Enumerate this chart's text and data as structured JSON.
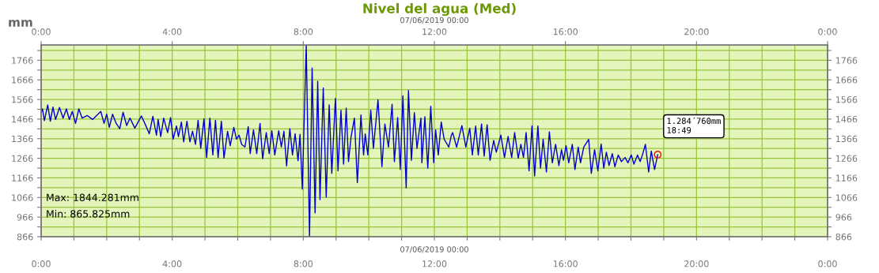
{
  "chart_data": {
    "type": "line",
    "title": "Nivel del agua (Med)",
    "ylabel": "mm",
    "xlabel": "07/06/2019 00:00",
    "x2label": "07/06/2019 00:00",
    "xlim": [
      0,
      24
    ],
    "xticks": [
      {
        "value": 0,
        "label": "0:00"
      },
      {
        "value": 1,
        "label": null
      },
      {
        "value": 2,
        "label": null
      },
      {
        "value": 3,
        "label": null
      },
      {
        "value": 4,
        "label": "4:00"
      },
      {
        "value": 5,
        "label": null
      },
      {
        "value": 6,
        "label": null
      },
      {
        "value": 7,
        "label": null
      },
      {
        "value": 8,
        "label": "8:00"
      },
      {
        "value": 9,
        "label": null
      },
      {
        "value": 10,
        "label": null
      },
      {
        "value": 11,
        "label": null
      },
      {
        "value": 12,
        "label": "12:00"
      },
      {
        "value": 13,
        "label": null
      },
      {
        "value": 14,
        "label": null
      },
      {
        "value": 15,
        "label": null
      },
      {
        "value": 16,
        "label": "16:00"
      },
      {
        "value": 17,
        "label": null
      },
      {
        "value": 18,
        "label": null
      },
      {
        "value": 19,
        "label": null
      },
      {
        "value": 20,
        "label": "20:00"
      },
      {
        "value": 21,
        "label": null
      },
      {
        "value": 22,
        "label": null
      },
      {
        "value": 23,
        "label": null
      },
      {
        "value": 24,
        "label": "0:00"
      }
    ],
    "x2lim": [
      0,
      24
    ],
    "x2ticks": [
      {
        "value": 0,
        "label": "0:00"
      },
      {
        "value": 4,
        "label": "4:00"
      },
      {
        "value": 8,
        "label": "8:00"
      },
      {
        "value": 12,
        "label": "12:00"
      },
      {
        "value": 16,
        "label": "16:00"
      },
      {
        "value": 20,
        "label": "20:00"
      },
      {
        "value": 24,
        "label": "0:00"
      }
    ],
    "ylim": [
      866,
      1844
    ],
    "yticks": [
      866,
      {
        "value": 916,
        "label": null
      },
      966,
      {
        "value": 1016,
        "label": null
      },
      1066,
      {
        "value": 1116,
        "label": null
      },
      1166,
      {
        "value": 1216,
        "label": null
      },
      1266,
      {
        "value": 1316,
        "label": null
      },
      1366,
      {
        "value": 1416,
        "label": null
      },
      1466,
      {
        "value": 1516,
        "label": null
      },
      1566,
      {
        "value": 1616,
        "label": null
      },
      1666,
      {
        "value": 1716,
        "label": null
      },
      1766,
      {
        "value": 1816,
        "label": null
      }
    ],
    "y2lim": [
      866,
      1844
    ],
    "y2ticks": [
      866,
      {
        "value": 916,
        "label": null
      },
      966,
      {
        "value": 1016,
        "label": null
      },
      1066,
      {
        "value": 1116,
        "label": null
      },
      1166,
      {
        "value": 1216,
        "label": null
      },
      1266,
      {
        "value": 1316,
        "label": null
      },
      1366,
      {
        "value": 1416,
        "label": null
      },
      1466,
      {
        "value": 1516,
        "label": null
      },
      1566,
      {
        "value": 1616,
        "label": null
      },
      1666,
      {
        "value": 1716,
        "label": null
      },
      1766,
      {
        "value": 1816,
        "label": null
      }
    ],
    "grid": true,
    "marker": "none",
    "line_style": "solid",
    "series": [
      {
        "color": "#0000cc",
        "x": [
          0,
          0.04,
          0.1,
          0.2,
          0.28,
          0.36,
          0.44,
          0.56,
          0.67,
          0.77,
          0.86,
          0.95,
          1.05,
          1.15,
          1.25,
          1.41,
          1.57,
          1.82,
          1.92,
          2.0,
          2.08,
          2.18,
          2.29,
          2.4,
          2.5,
          2.61,
          2.71,
          2.86,
          3.06,
          3.18,
          3.3,
          3.41,
          3.52,
          3.57,
          3.65,
          3.74,
          3.86,
          3.95,
          4.03,
          4.13,
          4.19,
          4.28,
          4.35,
          4.45,
          4.54,
          4.62,
          4.71,
          4.79,
          4.87,
          4.97,
          5.05,
          5.15,
          5.24,
          5.32,
          5.4,
          5.5,
          5.58,
          5.69,
          5.77,
          5.88,
          5.96,
          6.04,
          6.12,
          6.22,
          6.32,
          6.38,
          6.48,
          6.58,
          6.68,
          6.76,
          6.87,
          6.96,
          7.04,
          7.13,
          7.25,
          7.33,
          7.41,
          7.49,
          7.59,
          7.67,
          7.75,
          7.84,
          7.9,
          7.97,
          8.09,
          8.19,
          8.27,
          8.36,
          8.44,
          8.51,
          8.61,
          8.7,
          8.79,
          8.87,
          8.98,
          9.06,
          9.15,
          9.23,
          9.31,
          9.38,
          9.46,
          9.56,
          9.65,
          9.76,
          9.84,
          9.89,
          9.97,
          10.06,
          10.14,
          10.28,
          10.4,
          10.49,
          10.6,
          10.71,
          10.78,
          10.88,
          10.96,
          11.04,
          11.14,
          11.21,
          11.3,
          11.39,
          11.47,
          11.59,
          11.62,
          11.71,
          11.8,
          11.89,
          11.98,
          12.04,
          12.12,
          12.21,
          12.3,
          12.44,
          12.52,
          12.56,
          12.68,
          12.84,
          12.96,
          13.08,
          13.16,
          13.26,
          13.34,
          13.44,
          13.52,
          13.61,
          13.7,
          13.81,
          13.89,
          14.03,
          14.14,
          14.25,
          14.36,
          14.45,
          14.56,
          14.64,
          14.72,
          14.8,
          14.89,
          14.98,
          15.06,
          15.16,
          15.24,
          15.32,
          15.42,
          15.51,
          15.6,
          15.7,
          15.8,
          15.88,
          15.94,
          16.02,
          16.1,
          16.21,
          16.29,
          16.39,
          16.46,
          16.56,
          16.71,
          16.79,
          16.89,
          16.99,
          17.09,
          17.17,
          17.25,
          17.33,
          17.43,
          17.51,
          17.61,
          17.71,
          17.82,
          17.91,
          18.01,
          18.09,
          18.2,
          18.28,
          18.35,
          18.44,
          18.54,
          18.62,
          18.72,
          18.8167
        ],
        "values": [
          1498,
          1518,
          1458,
          1538,
          1455,
          1527,
          1464,
          1525,
          1471,
          1518,
          1464,
          1505,
          1444,
          1518,
          1471,
          1484,
          1464,
          1505,
          1444,
          1491,
          1424,
          1491,
          1444,
          1417,
          1501,
          1433,
          1471,
          1420,
          1482,
          1438,
          1391,
          1480,
          1384,
          1464,
          1377,
          1471,
          1397,
          1474,
          1364,
          1431,
          1377,
          1451,
          1350,
          1455,
          1350,
          1404,
          1337,
          1460,
          1317,
          1468,
          1270,
          1471,
          1283,
          1460,
          1270,
          1455,
          1267,
          1404,
          1330,
          1424,
          1364,
          1384,
          1337,
          1324,
          1428,
          1290,
          1411,
          1290,
          1444,
          1264,
          1397,
          1290,
          1407,
          1283,
          1407,
          1324,
          1404,
          1227,
          1417,
          1283,
          1391,
          1254,
          1388,
          1109,
          1844,
          866,
          1726,
          988,
          1659,
          1055,
          1625,
          1068,
          1538,
          1189,
          1572,
          1202,
          1511,
          1236,
          1522,
          1249,
          1377,
          1471,
          1142,
          1487,
          1283,
          1390,
          1283,
          1511,
          1317,
          1565,
          1223,
          1441,
          1323,
          1541,
          1249,
          1474,
          1209,
          1585,
          1115,
          1612,
          1256,
          1499,
          1317,
          1471,
          1243,
          1478,
          1216,
          1531,
          1243,
          1411,
          1283,
          1451,
          1363,
          1323,
          1384,
          1397,
          1323,
          1433,
          1323,
          1420,
          1283,
          1431,
          1283,
          1441,
          1277,
          1437,
          1256,
          1357,
          1297,
          1384,
          1270,
          1377,
          1270,
          1397,
          1267,
          1337,
          1270,
          1397,
          1202,
          1431,
          1176,
          1431,
          1216,
          1363,
          1196,
          1401,
          1243,
          1337,
          1229,
          1310,
          1256,
          1330,
          1243,
          1337,
          1209,
          1323,
          1243,
          1323,
          1363,
          1189,
          1310,
          1202,
          1339,
          1216,
          1297,
          1229,
          1290,
          1223,
          1283,
          1249,
          1270,
          1243,
          1283,
          1236,
          1283,
          1249,
          1283,
          1337,
          1196,
          1303,
          1209,
          1284.76
        ]
      }
    ],
    "annotations": [
      "Max: 1844.281mm",
      "Min: 865.825mm",
      {
        "text": "1.284´760mm\n18:49",
        "x": 18.8167,
        "y": 1284.76
      }
    ]
  }
}
